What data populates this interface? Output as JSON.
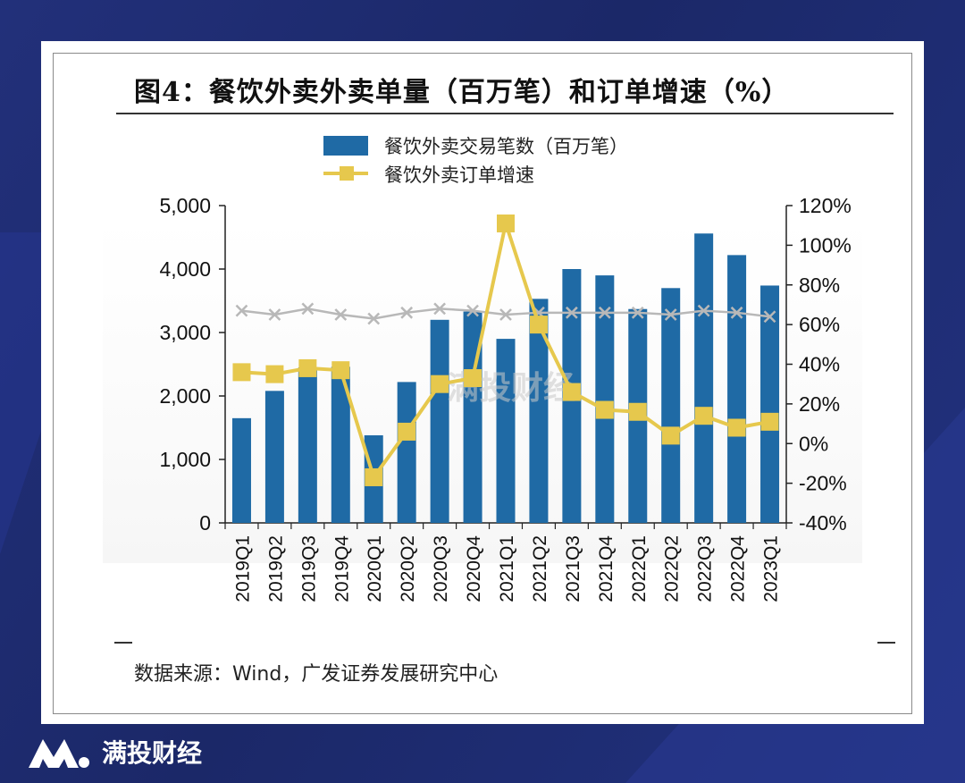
{
  "page": {
    "title": "图4：餐饮外卖外卖单量（百万笔）和订单增速（%）",
    "source": "数据来源：Wind，广发证券发展研究中心",
    "brand": "满投财经",
    "watermark": "满投财经"
  },
  "colors": {
    "bar": "#1f6aa5",
    "line": "#e6c84d",
    "ghost": "#b8b8b8",
    "background": "#1d2a6e"
  },
  "chart_data": {
    "type": "bar",
    "categories": [
      "2019Q1",
      "2019Q2",
      "2019Q3",
      "2019Q4",
      "2020Q1",
      "2020Q2",
      "2020Q3",
      "2020Q4",
      "2021Q1",
      "2021Q2",
      "2021Q3",
      "2021Q4",
      "2022Q1",
      "2022Q2",
      "2022Q3",
      "2022Q4",
      "2023Q1"
    ],
    "series": [
      {
        "name": "餐饮外卖交易笔数（百万笔）",
        "type": "bar",
        "axis": "left",
        "values": [
          1650,
          2080,
          2450,
          2460,
          1380,
          2220,
          3200,
          3330,
          2900,
          3530,
          4000,
          3900,
          3370,
          3700,
          4560,
          4220,
          3740
        ]
      },
      {
        "name": "餐饮外卖订单增速",
        "type": "line",
        "axis": "right",
        "values": [
          36,
          35,
          38,
          37,
          -17,
          6,
          30,
          33,
          111,
          60,
          26,
          17,
          16,
          4,
          14,
          8,
          11
        ]
      }
    ],
    "y_left": {
      "min": 0,
      "max": 5000,
      "ticks": [
        "0",
        "1,000",
        "2,000",
        "3,000",
        "4,000",
        "5,000"
      ]
    },
    "y_right": {
      "min": -40,
      "max": 120,
      "ticks": [
        "-40%",
        "-20%",
        "0%",
        "20%",
        "40%",
        "60%",
        "80%",
        "100%",
        "120%"
      ]
    },
    "legend": [
      "餐饮外卖交易笔数（百万笔）",
      "餐饮外卖订单增速"
    ]
  }
}
